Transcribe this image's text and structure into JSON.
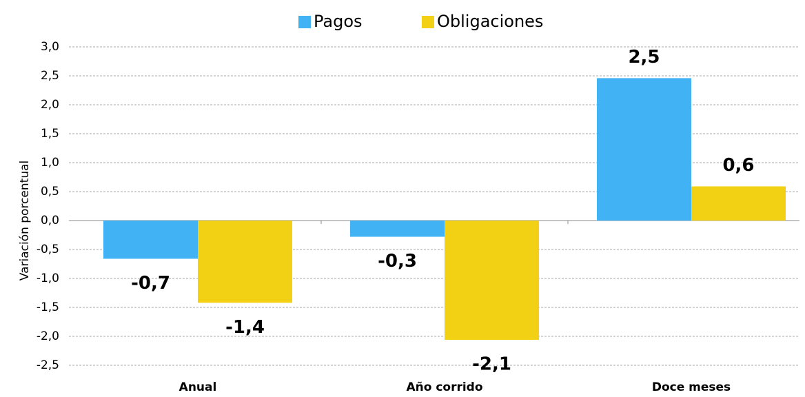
{
  "chart_data": {
    "type": "bar",
    "y_label": "Variación  porcentual",
    "categories": [
      "Anual",
      "Año corrido",
      "Doce meses"
    ],
    "series": [
      {
        "name": "Pagos",
        "color": "#41b3f5",
        "values": [
          -0.66,
          -0.28,
          2.46
        ],
        "value_labels": [
          "-0,7",
          "-0,3",
          "2,5"
        ]
      },
      {
        "name": "Obligaciones",
        "color": "#f2d014",
        "values": [
          -1.42,
          -2.06,
          0.59
        ],
        "value_labels": [
          "-1,4",
          "-2,1",
          "0,6"
        ]
      }
    ],
    "ylim": [
      -2.5,
      3.0
    ],
    "yticks": [
      {
        "value": -2.5,
        "label": "-2,5"
      },
      {
        "value": -2.0,
        "label": "-2,0"
      },
      {
        "value": -1.5,
        "label": "-1,5"
      },
      {
        "value": -1.0,
        "label": "-1,0"
      },
      {
        "value": -0.5,
        "label": "-0,5"
      },
      {
        "value": 0.0,
        "label": "0,0"
      },
      {
        "value": 0.5,
        "label": "0,5"
      },
      {
        "value": 1.0,
        "label": "1,0"
      },
      {
        "value": 1.5,
        "label": "1,5"
      },
      {
        "value": 2.0,
        "label": "2,0"
      },
      {
        "value": 2.5,
        "label": "2,5"
      },
      {
        "value": 3.0,
        "label": "3,0"
      }
    ],
    "grid": true,
    "legend": "top"
  }
}
